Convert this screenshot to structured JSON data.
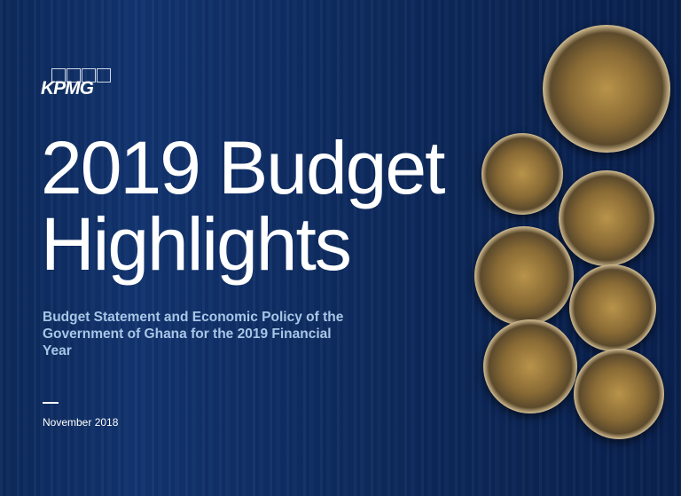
{
  "brand": {
    "logo": "KPMG"
  },
  "cover": {
    "title_line1": "2019 Budget",
    "title_line2": "Highlights",
    "subtitle": "Budget Statement and Economic Policy of the Government of Ghana for the 2019 Financial Year",
    "date": "November 2018"
  },
  "colors": {
    "background": "#0f2d63",
    "subtitle": "#a8c6e6"
  }
}
